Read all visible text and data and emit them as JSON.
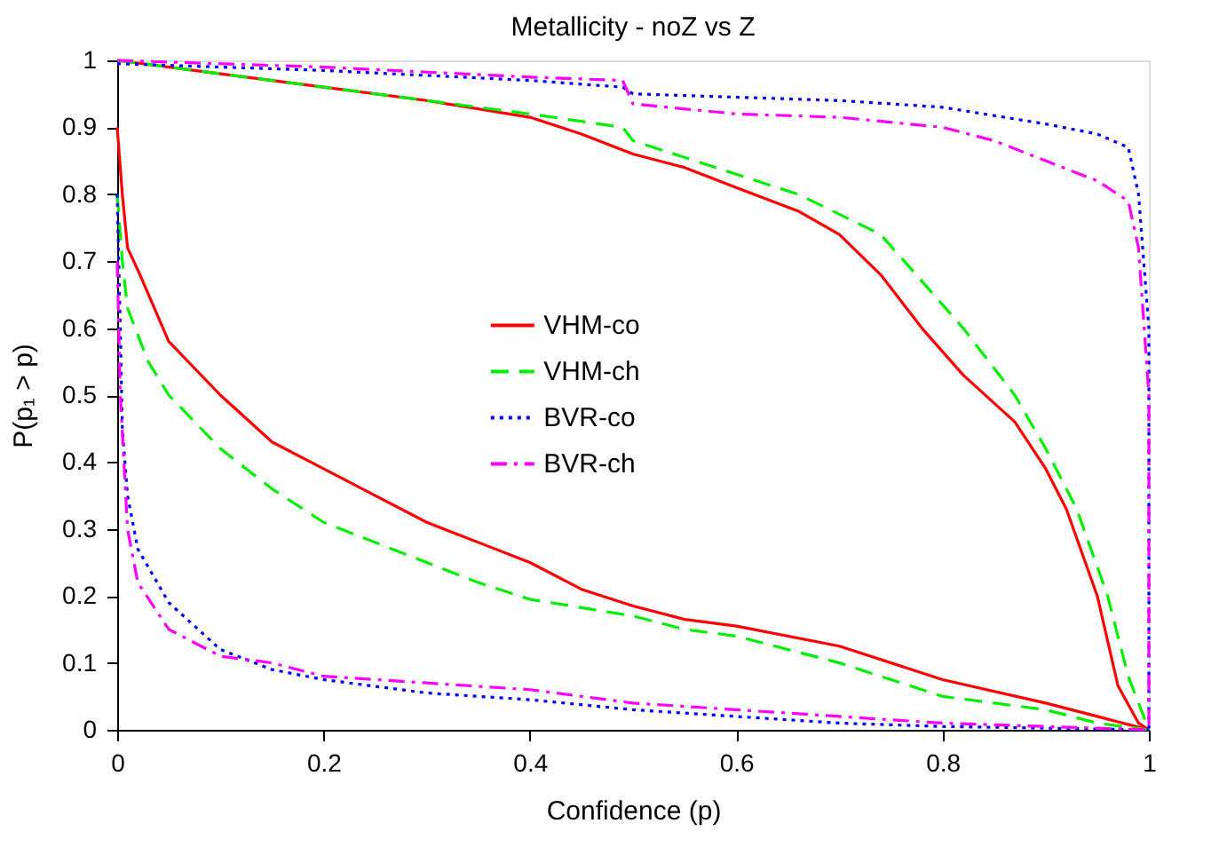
{
  "chart_data": {
    "type": "line",
    "title": "Metallicity - noZ vs Z",
    "xlabel": "Confidence (p)",
    "ylabel": "P(p₁ > p)",
    "xlim": [
      0,
      1
    ],
    "ylim": [
      0,
      1
    ],
    "xticks": [
      0,
      0.2,
      0.4,
      0.6,
      0.8,
      1
    ],
    "yticks": [
      0,
      0.1,
      0.2,
      0.3,
      0.4,
      0.5,
      0.6,
      0.7,
      0.8,
      0.9,
      1
    ],
    "grid": false,
    "legend": "center",
    "marker": "none",
    "series": [
      {
        "name": "VHM-co",
        "color": "#ff0000",
        "line_style": "solid",
        "x": [
          0,
          0.1,
          0.2,
          0.3,
          0.4,
          0.45,
          0.5,
          0.55,
          0.6,
          0.66,
          0.7,
          0.74,
          0.78,
          0.82,
          0.87,
          0.9,
          0.92,
          0.95,
          0.97,
          0.99,
          1
        ],
        "values": [
          1,
          0.98,
          0.96,
          0.94,
          0.915,
          0.89,
          0.86,
          0.84,
          0.81,
          0.775,
          0.74,
          0.68,
          0.6,
          0.53,
          0.46,
          0.39,
          0.33,
          0.2,
          0.066,
          0.01,
          0
        ]
      },
      {
        "color": "#ff0000",
        "line_style": "solid",
        "x": [
          0,
          0.005,
          0.01,
          0.022,
          0.05,
          0.1,
          0.15,
          0.2,
          0.25,
          0.3,
          0.35,
          0.4,
          0.45,
          0.5,
          0.55,
          0.6,
          0.7,
          0.8,
          0.9,
          0.95,
          1
        ],
        "values": [
          0.9,
          0.8,
          0.72,
          0.68,
          0.58,
          0.5,
          0.43,
          0.39,
          0.35,
          0.31,
          0.28,
          0.25,
          0.21,
          0.185,
          0.165,
          0.155,
          0.125,
          0.075,
          0.04,
          0.02,
          0
        ]
      },
      {
        "name": "VHM-ch",
        "color": "#00ee00",
        "line_style": "dashed",
        "x": [
          0,
          0.1,
          0.2,
          0.3,
          0.4,
          0.49,
          0.5,
          0.6,
          0.66,
          0.7,
          0.74,
          0.78,
          0.82,
          0.87,
          0.9,
          0.93,
          0.96,
          0.98,
          1
        ],
        "values": [
          1,
          0.98,
          0.96,
          0.94,
          0.92,
          0.9,
          0.88,
          0.83,
          0.8,
          0.77,
          0.74,
          0.67,
          0.6,
          0.5,
          0.42,
          0.33,
          0.2,
          0.08,
          0
        ]
      },
      {
        "color": "#00ee00",
        "line_style": "dashed",
        "x": [
          0,
          0.005,
          0.01,
          0.03,
          0.05,
          0.1,
          0.15,
          0.2,
          0.25,
          0.3,
          0.35,
          0.4,
          0.5,
          0.55,
          0.6,
          0.7,
          0.8,
          0.9,
          0.95,
          1
        ],
        "values": [
          0.8,
          0.7,
          0.63,
          0.55,
          0.5,
          0.42,
          0.36,
          0.31,
          0.28,
          0.25,
          0.22,
          0.195,
          0.17,
          0.15,
          0.14,
          0.1,
          0.05,
          0.03,
          0.01,
          0
        ]
      },
      {
        "name": "BVR-co",
        "color": "#0000ff",
        "line_style": "dotted",
        "x": [
          0,
          0.2,
          0.4,
          0.49,
          0.5,
          0.7,
          0.8,
          0.9,
          0.95,
          0.98,
          0.99,
          1,
          1
        ],
        "values": [
          0.995,
          0.985,
          0.97,
          0.96,
          0.95,
          0.94,
          0.93,
          0.905,
          0.89,
          0.87,
          0.8,
          0.6,
          0
        ]
      },
      {
        "color": "#0000ff",
        "line_style": "dotted",
        "x": [
          0,
          0.003,
          0.005,
          0.01,
          0.02,
          0.05,
          0.1,
          0.15,
          0.2,
          0.3,
          0.4,
          0.5,
          0.6,
          0.7,
          0.8,
          1
        ],
        "values": [
          0.8,
          0.6,
          0.45,
          0.35,
          0.27,
          0.19,
          0.12,
          0.09,
          0.075,
          0.055,
          0.045,
          0.03,
          0.02,
          0.01,
          0.005,
          0
        ]
      },
      {
        "name": "BVR-ch",
        "color": "#ff00ff",
        "line_style": "dashdot",
        "x": [
          0,
          0.2,
          0.4,
          0.49,
          0.5,
          0.6,
          0.7,
          0.8,
          0.85,
          0.9,
          0.95,
          0.98,
          0.99,
          1,
          1
        ],
        "values": [
          1,
          0.99,
          0.975,
          0.97,
          0.935,
          0.92,
          0.915,
          0.9,
          0.88,
          0.85,
          0.82,
          0.79,
          0.72,
          0.5,
          0
        ]
      },
      {
        "color": "#ff00ff",
        "line_style": "dashdot",
        "x": [
          0,
          0.003,
          0.01,
          0.02,
          0.05,
          0.1,
          0.15,
          0.2,
          0.3,
          0.4,
          0.5,
          0.6,
          0.7,
          0.8,
          1
        ],
        "values": [
          0.7,
          0.5,
          0.3,
          0.22,
          0.15,
          0.11,
          0.1,
          0.08,
          0.07,
          0.06,
          0.04,
          0.03,
          0.02,
          0.01,
          0
        ]
      }
    ]
  }
}
